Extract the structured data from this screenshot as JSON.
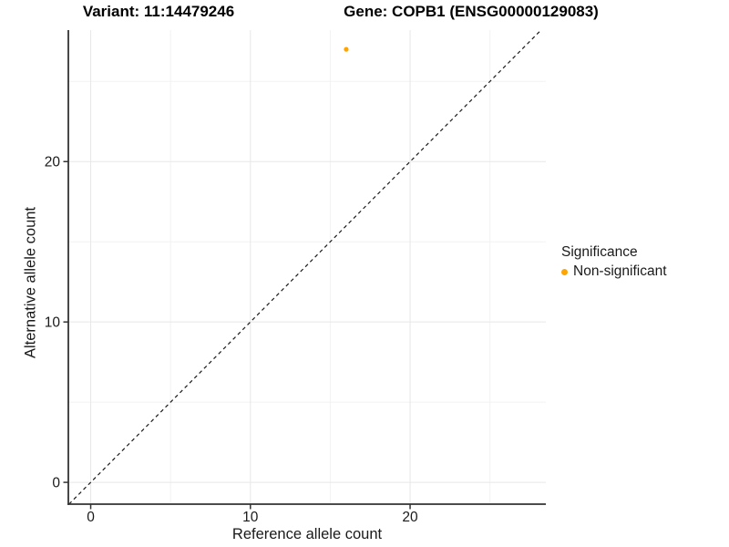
{
  "chart_data": {
    "type": "scatter",
    "title_left": "Variant: 11:14479246",
    "title_right": "Gene: COPB1 (ENSG00000129083)",
    "xlabel": "Reference allele count",
    "ylabel": "Alternative allele count",
    "xlim": [
      -1.4,
      28.5
    ],
    "ylim": [
      -1.36,
      28.2
    ],
    "x_ticks": [
      0,
      10,
      20
    ],
    "y_ticks": [
      0,
      10,
      20
    ],
    "x_minor_ticks": [
      5,
      15,
      25
    ],
    "y_minor_ticks": [
      5,
      15,
      25
    ],
    "grid": true,
    "points": [
      {
        "x": 16,
        "y": 27,
        "series": "Non-significant"
      }
    ],
    "identity_line": {
      "slope": 1,
      "intercept": 0,
      "style": "dashed"
    },
    "legend": {
      "title": "Significance",
      "position": "right",
      "items": [
        {
          "label": "Non-significant",
          "color": "#FFA500"
        }
      ]
    },
    "colors": {
      "point": "#FFA500",
      "grid_major": "#e7e7e7",
      "grid_minor": "#f2f2f2",
      "axis_line": "#333333",
      "tick_text": "#1a1a1a",
      "identity_line": "#1a1a1a",
      "background": "#ffffff"
    }
  }
}
